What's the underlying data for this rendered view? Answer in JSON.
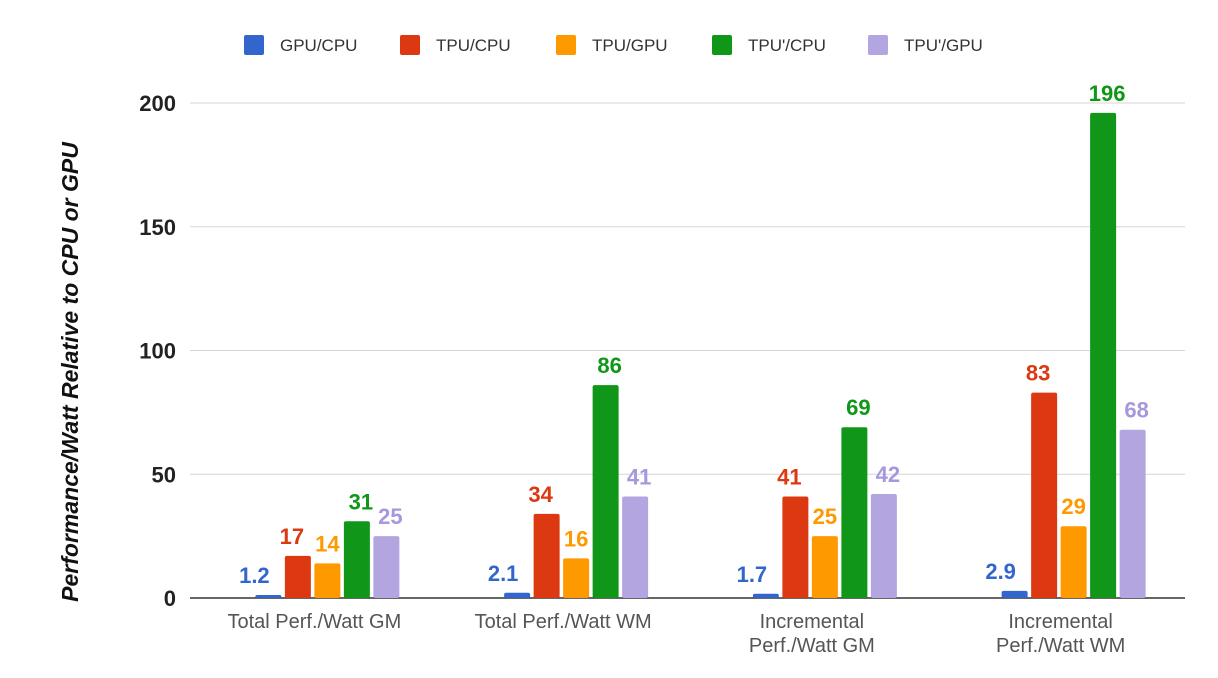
{
  "chart_data": {
    "type": "bar",
    "title": "",
    "xlabel": "",
    "ylabel": "Performance/Watt Relative to CPU or GPU",
    "ylim": [
      0,
      200
    ],
    "yticks": [
      0,
      50,
      100,
      150,
      200
    ],
    "grid": true,
    "legend_position": "top",
    "categories": [
      [
        "Total Perf./Watt GM"
      ],
      [
        "Total Perf./Watt WM"
      ],
      [
        "Incremental",
        "Perf./Watt GM"
      ],
      [
        "Incremental",
        "Perf./Watt WM"
      ]
    ],
    "series": [
      {
        "name": "GPU/CPU",
        "color": "#3366cc",
        "values": [
          1.2,
          2.1,
          1.7,
          2.9
        ],
        "labels": [
          "1.2",
          "2.1",
          "1.7",
          "2.9"
        ]
      },
      {
        "name": "TPU/CPU",
        "color": "#dc3912",
        "values": [
          17,
          34,
          41,
          83
        ],
        "labels": [
          "17",
          "34",
          "41",
          "83"
        ]
      },
      {
        "name": "TPU/GPU",
        "color": "#ff9900",
        "values": [
          14,
          16,
          25,
          29
        ],
        "labels": [
          "14",
          "16",
          "25",
          "29"
        ]
      },
      {
        "name": "TPU'/CPU",
        "color": "#109618",
        "values": [
          31,
          86,
          69,
          196
        ],
        "labels": [
          "31",
          "86",
          "69",
          "196"
        ]
      },
      {
        "name": "TPU'/GPU",
        "color": "#b3a6e0",
        "values": [
          25,
          41,
          42,
          68
        ],
        "labels": [
          "25",
          "41",
          "42",
          "68"
        ]
      }
    ]
  }
}
